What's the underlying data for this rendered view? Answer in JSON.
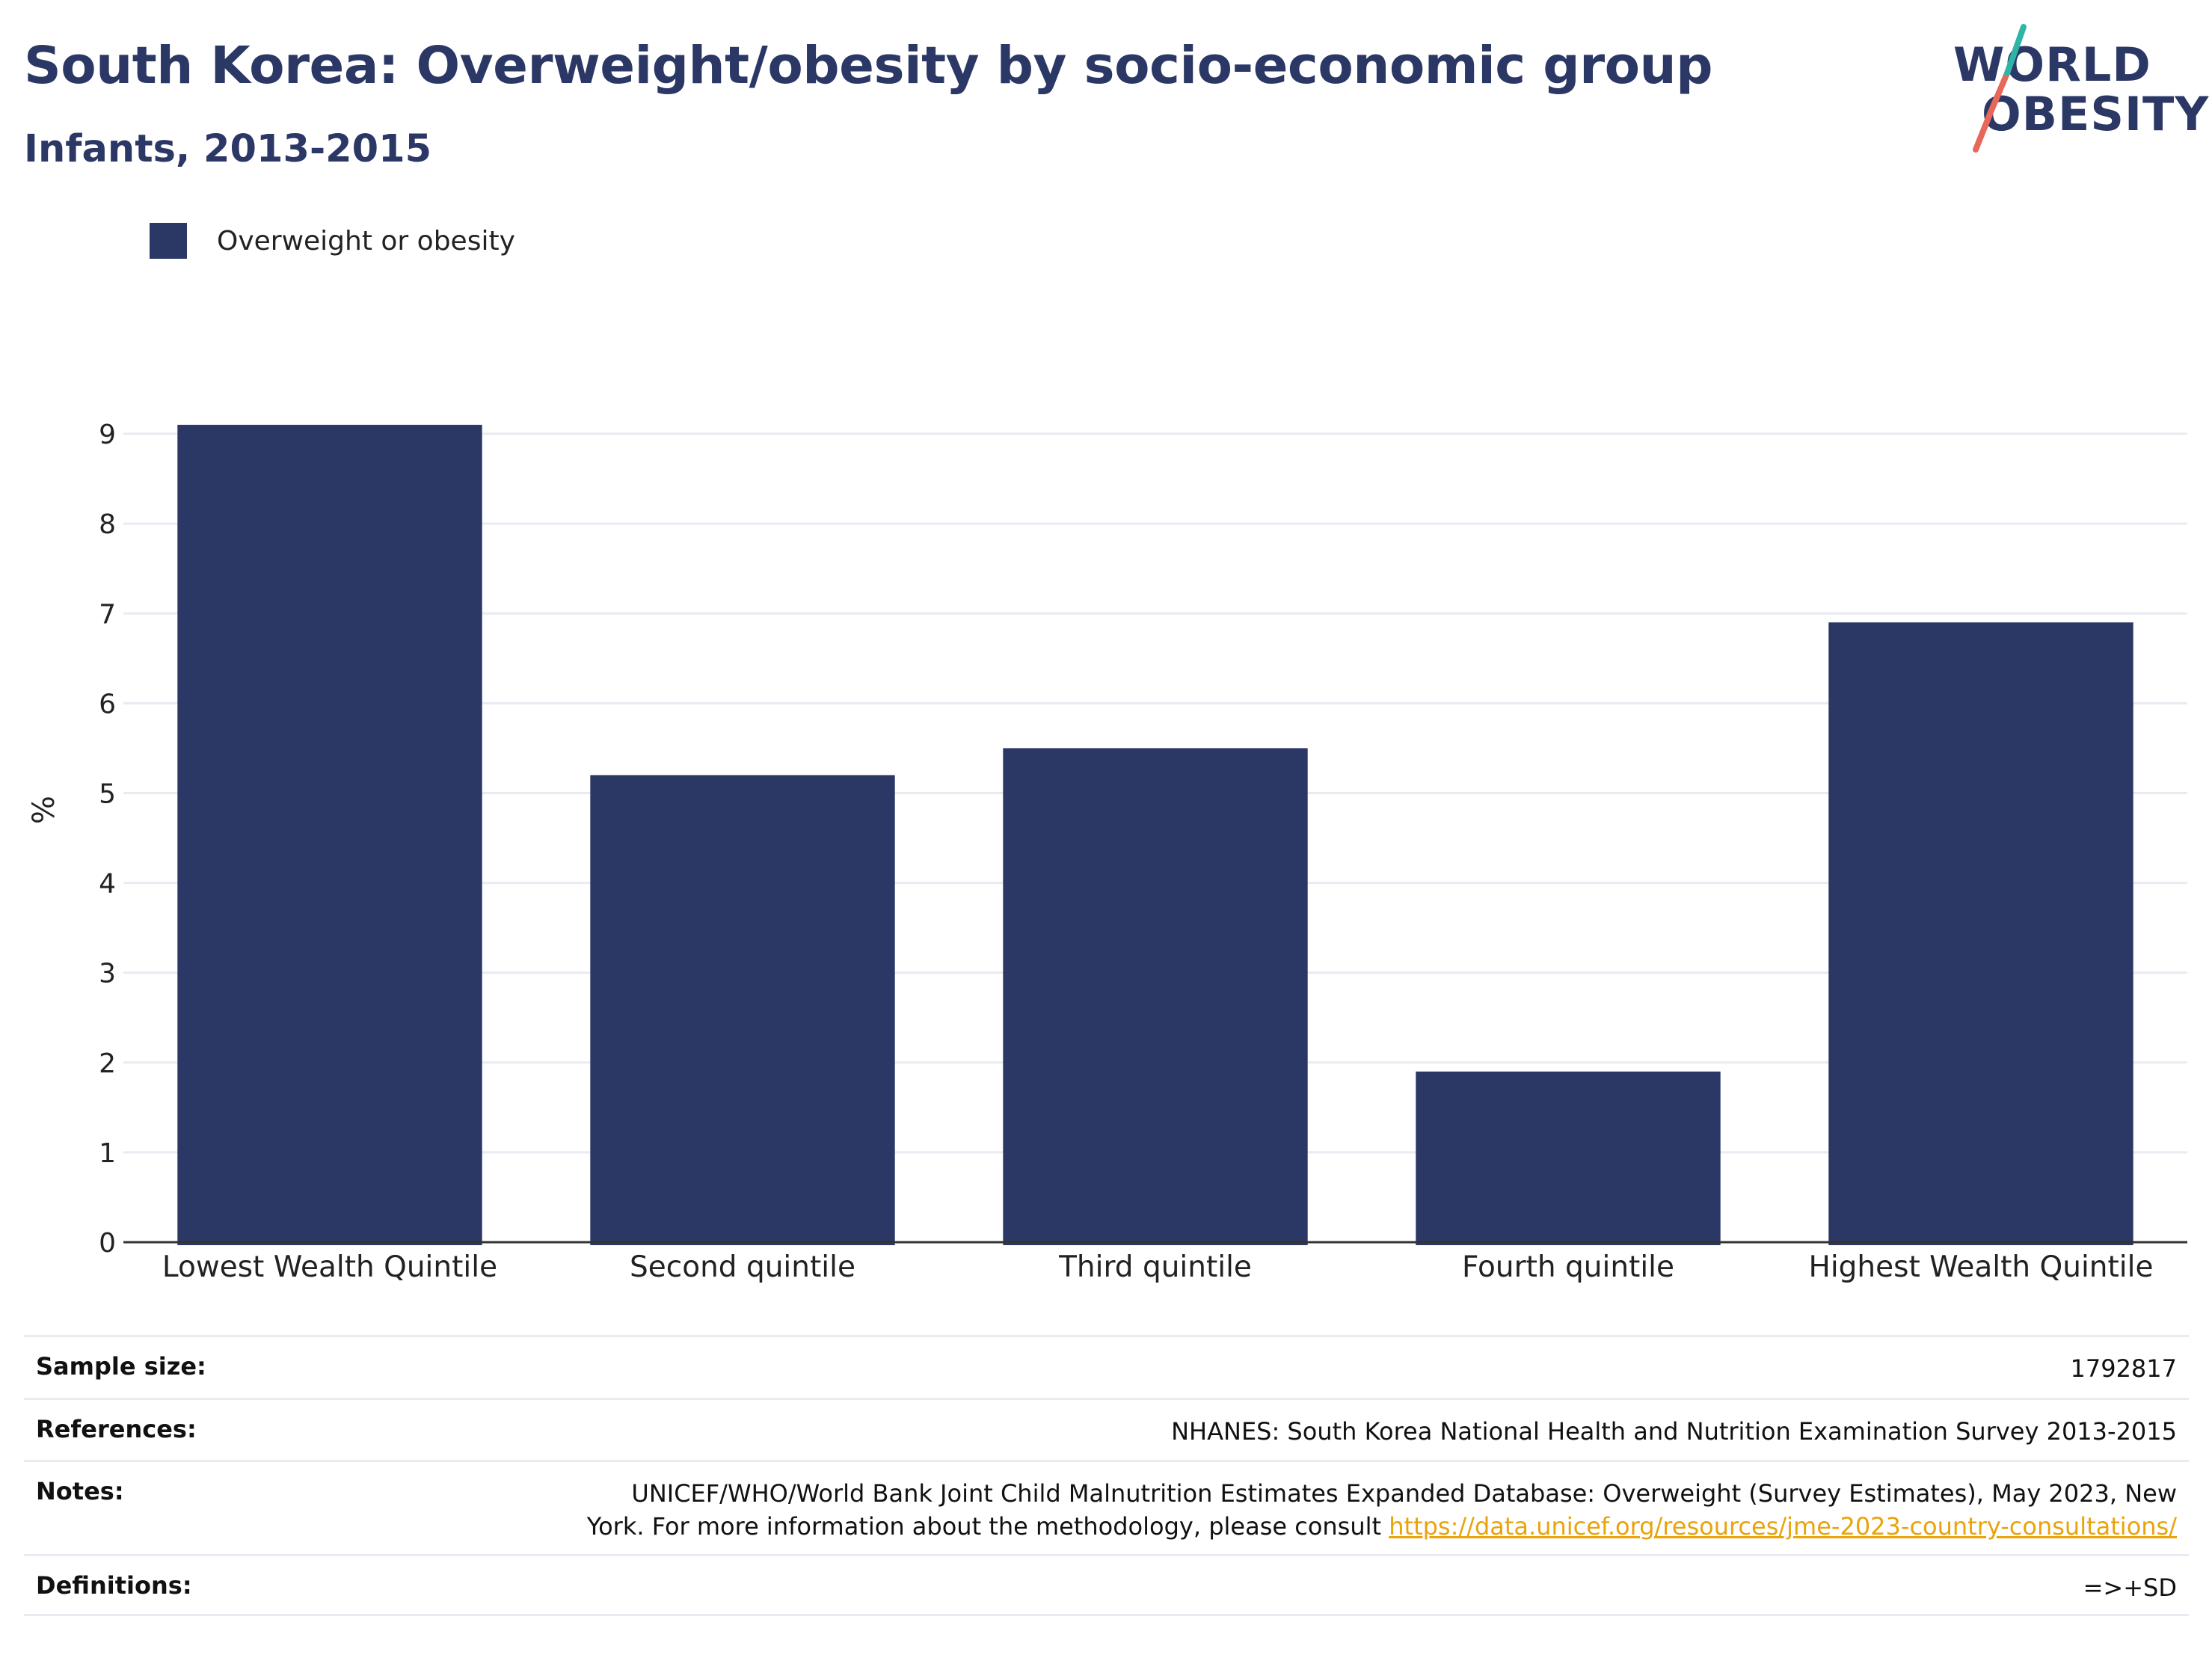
{
  "header": {
    "title": "South Korea: Overweight/obesity by socio-economic group",
    "subtitle": "Infants, 2013-2015"
  },
  "logo": {
    "line1": "WORLD",
    "line2": "OBESITY",
    "accent_teal": "#2fb5a8",
    "accent_red": "#e8665a"
  },
  "colors": {
    "bar": "#2b3765",
    "text": "#2b3765",
    "grid": "#e8ebf2",
    "link": "#e9a30b"
  },
  "chart_data": {
    "type": "bar",
    "categories": [
      "Lowest Wealth Quintile",
      "Second quintile",
      "Third quintile",
      "Fourth quintile",
      "Highest Wealth Quintile"
    ],
    "series": [
      {
        "name": "Overweight or obesity",
        "values": [
          9.1,
          5.2,
          5.5,
          1.9,
          6.9
        ]
      }
    ],
    "ylabel": "%",
    "ylim": [
      0,
      9.5
    ],
    "yticks": [
      0,
      1,
      2,
      3,
      4,
      5,
      6,
      7,
      8,
      9
    ],
    "grid": true,
    "legend": "top-left"
  },
  "info_table": {
    "sample_size": {
      "label": "Sample size:",
      "value": "1792817"
    },
    "references": {
      "label": "References:",
      "value": "NHANES: South Korea National Health and Nutrition Examination Survey 2013-2015"
    },
    "notes": {
      "label": "Notes:",
      "line1": "UNICEF/WHO/World Bank Joint Child Malnutrition Estimates Expanded Database: Overweight (Survey Estimates), May 2023, New",
      "line2": "York. For more information about the methodology, please consult",
      "link": "https://data.unicef.org/resources/jme-2023-country-consultations/"
    },
    "definitions": {
      "label": "Definitions:",
      "value": "=>+SD"
    }
  }
}
